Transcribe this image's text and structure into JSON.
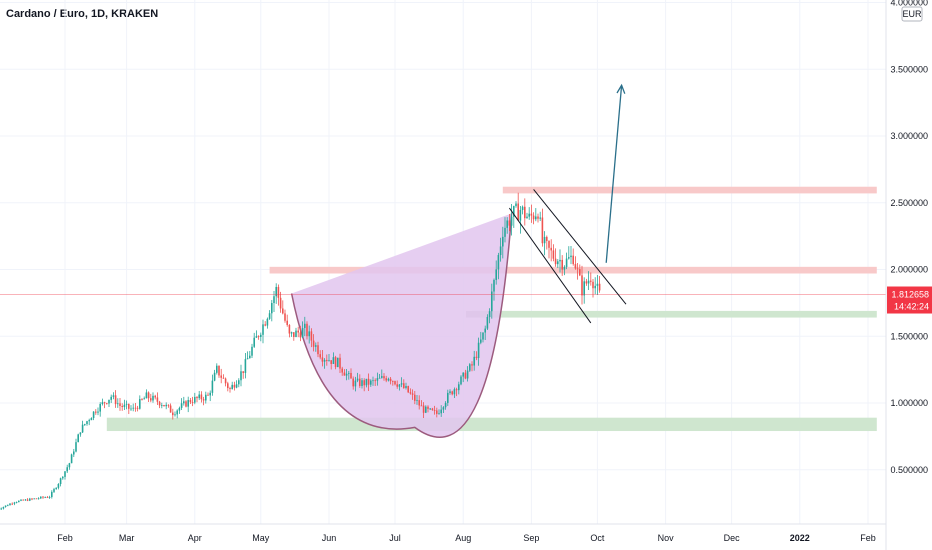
{
  "header": {
    "title": "Cardano / Euro, 1D, KRAKEN"
  },
  "currency": "EUR",
  "price_badge": {
    "price": "1.812658",
    "countdown": "14:42:24"
  },
  "colors": {
    "up": "#26a69a",
    "down": "#ef5350",
    "resistance_zone": "#f8c9c9",
    "support_zone": "#cfe6cf",
    "cup_fill": "#e2c6ee",
    "cup_stroke": "#9c5b7e",
    "arrow": "#2a6f8a",
    "channel": "#131722",
    "price_line": "#f23645"
  },
  "chart_data": {
    "type": "candlestick",
    "title": "Cardano / Euro, 1D, KRAKEN",
    "ylim": [
      0.1,
      4.0
    ],
    "y_ticks": [
      "4.000000",
      "3.500000",
      "3.000000",
      "2.500000",
      "2.000000",
      "1.500000",
      "1.000000",
      "0.500000"
    ],
    "y_tick_values": [
      4.0,
      3.5,
      3.0,
      2.5,
      2.0,
      1.5,
      1.0,
      0.5
    ],
    "x_ticks": [
      {
        "label": "Feb",
        "t": 31,
        "bold": false
      },
      {
        "label": "Mar",
        "t": 59,
        "bold": false
      },
      {
        "label": "Apr",
        "t": 90,
        "bold": false
      },
      {
        "label": "May",
        "t": 120,
        "bold": false
      },
      {
        "label": "Jun",
        "t": 151,
        "bold": false
      },
      {
        "label": "Jul",
        "t": 181,
        "bold": false
      },
      {
        "label": "Aug",
        "t": 212,
        "bold": false
      },
      {
        "label": "Sep",
        "t": 243,
        "bold": false
      },
      {
        "label": "Oct",
        "t": 273,
        "bold": false
      },
      {
        "label": "Nov",
        "t": 304,
        "bold": false
      },
      {
        "label": "Dec",
        "t": 334,
        "bold": false
      },
      {
        "label": "2022",
        "t": 365,
        "bold": true
      },
      {
        "label": "Feb",
        "t": 396,
        "bold": false
      }
    ],
    "x_range": [
      0,
      400
    ],
    "price_series": [
      [
        0,
        0.2
      ],
      [
        8,
        0.26
      ],
      [
        16,
        0.28
      ],
      [
        24,
        0.3
      ],
      [
        28,
        0.4
      ],
      [
        33,
        0.55
      ],
      [
        38,
        0.8
      ],
      [
        45,
        0.95
      ],
      [
        52,
        1.05
      ],
      [
        56,
        0.98
      ],
      [
        62,
        0.95
      ],
      [
        68,
        1.05
      ],
      [
        75,
        1.0
      ],
      [
        80,
        0.93
      ],
      [
        88,
        1.02
      ],
      [
        96,
        1.05
      ],
      [
        100,
        1.25
      ],
      [
        106,
        1.1
      ],
      [
        112,
        1.25
      ],
      [
        117,
        1.45
      ],
      [
        122,
        1.62
      ],
      [
        127,
        1.85
      ],
      [
        133,
        1.5
      ],
      [
        140,
        1.55
      ],
      [
        148,
        1.35
      ],
      [
        155,
        1.3
      ],
      [
        162,
        1.15
      ],
      [
        170,
        1.15
      ],
      [
        178,
        1.2
      ],
      [
        186,
        1.1
      ],
      [
        194,
        0.95
      ],
      [
        200,
        0.92
      ],
      [
        205,
        1.05
      ],
      [
        210,
        1.15
      ],
      [
        216,
        1.28
      ],
      [
        222,
        1.55
      ],
      [
        226,
        1.9
      ],
      [
        230,
        2.3
      ],
      [
        234,
        2.4
      ],
      [
        238,
        2.45
      ],
      [
        242,
        2.38
      ],
      [
        246,
        2.45
      ],
      [
        248,
        2.2
      ],
      [
        253,
        2.1
      ],
      [
        258,
        2.05
      ],
      [
        262,
        2.1
      ],
      [
        266,
        1.85
      ],
      [
        270,
        1.95
      ],
      [
        274,
        1.81
      ]
    ],
    "zones": [
      {
        "name": "resistance-top",
        "y1": 2.57,
        "y2": 2.62,
        "t1": 230,
        "t2": 400,
        "kind": "resistance"
      },
      {
        "name": "resistance-mid",
        "y1": 1.97,
        "y2": 2.02,
        "t1": 124,
        "t2": 400,
        "kind": "resistance"
      },
      {
        "name": "support-mid",
        "y1": 1.64,
        "y2": 1.69,
        "t1": 216,
        "t2": 400,
        "kind": "support"
      },
      {
        "name": "support-low",
        "y1": 0.79,
        "y2": 0.89,
        "t1": 50,
        "t2": 400,
        "kind": "support"
      }
    ],
    "cup": {
      "t_left": 134,
      "y_left": 1.82,
      "t_bottom": 190,
      "y_bottom": 0.84,
      "t_right": 234,
      "y_right": 2.42
    },
    "channel": [
      {
        "t1": 233,
        "y1": 2.46,
        "t2": 270,
        "y2": 1.6
      },
      {
        "t1": 244,
        "y1": 2.6,
        "t2": 286,
        "y2": 1.74
      }
    ],
    "arrow": {
      "t1": 277,
      "y1": 2.05,
      "t2": 284,
      "y2": 3.38
    },
    "current_price": 1.812658
  }
}
